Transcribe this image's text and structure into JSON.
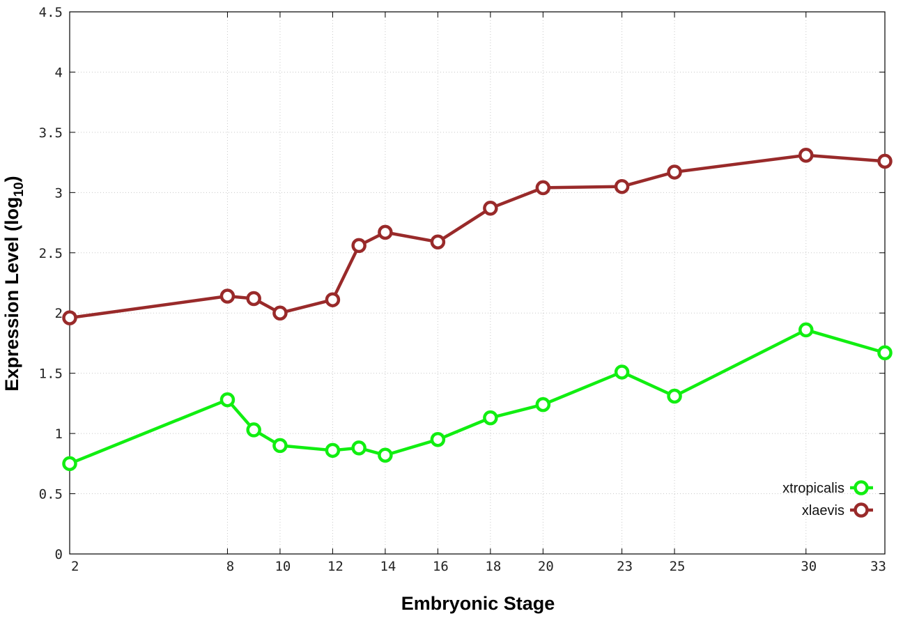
{
  "chart_data": {
    "type": "line",
    "xlabel": "Embryonic Stage",
    "ylabel_main": "Expression Level (log",
    "ylabel_sub": "10",
    "ylabel_close": ")",
    "xlim": [
      2,
      33
    ],
    "ylim": [
      0,
      4.5
    ],
    "x_ticks": [
      2,
      8,
      10,
      12,
      14,
      16,
      18,
      20,
      23,
      25,
      30,
      33
    ],
    "y_ticks": [
      0,
      0.5,
      1,
      1.5,
      2,
      2.5,
      3,
      3.5,
      4,
      4.5
    ],
    "x_tick_labels": [
      "2",
      "8",
      "10",
      "12",
      "14",
      "16",
      "18",
      "20",
      "23",
      "25",
      "30",
      "33"
    ],
    "y_tick_labels": [
      "0",
      "0.5",
      "1",
      "1.5",
      "2",
      "2.5",
      "3",
      "3.5",
      "4",
      "4.5"
    ],
    "grid": true,
    "legend_position": "bottom-right",
    "x": [
      2,
      8,
      9,
      10,
      12,
      13,
      14,
      16,
      18,
      20,
      23,
      25,
      30,
      33
    ],
    "series": [
      {
        "name": "xtropicalis",
        "color": "#11ee11",
        "values": [
          0.75,
          1.28,
          1.03,
          0.9,
          0.86,
          0.88,
          0.82,
          0.95,
          1.13,
          1.24,
          1.51,
          1.31,
          1.86,
          1.67
        ]
      },
      {
        "name": "xlaevis",
        "color": "#992a2a",
        "values": [
          1.96,
          2.14,
          2.12,
          2.0,
          2.11,
          2.56,
          2.67,
          2.59,
          2.87,
          3.04,
          3.05,
          3.17,
          3.31,
          3.26
        ]
      }
    ]
  }
}
